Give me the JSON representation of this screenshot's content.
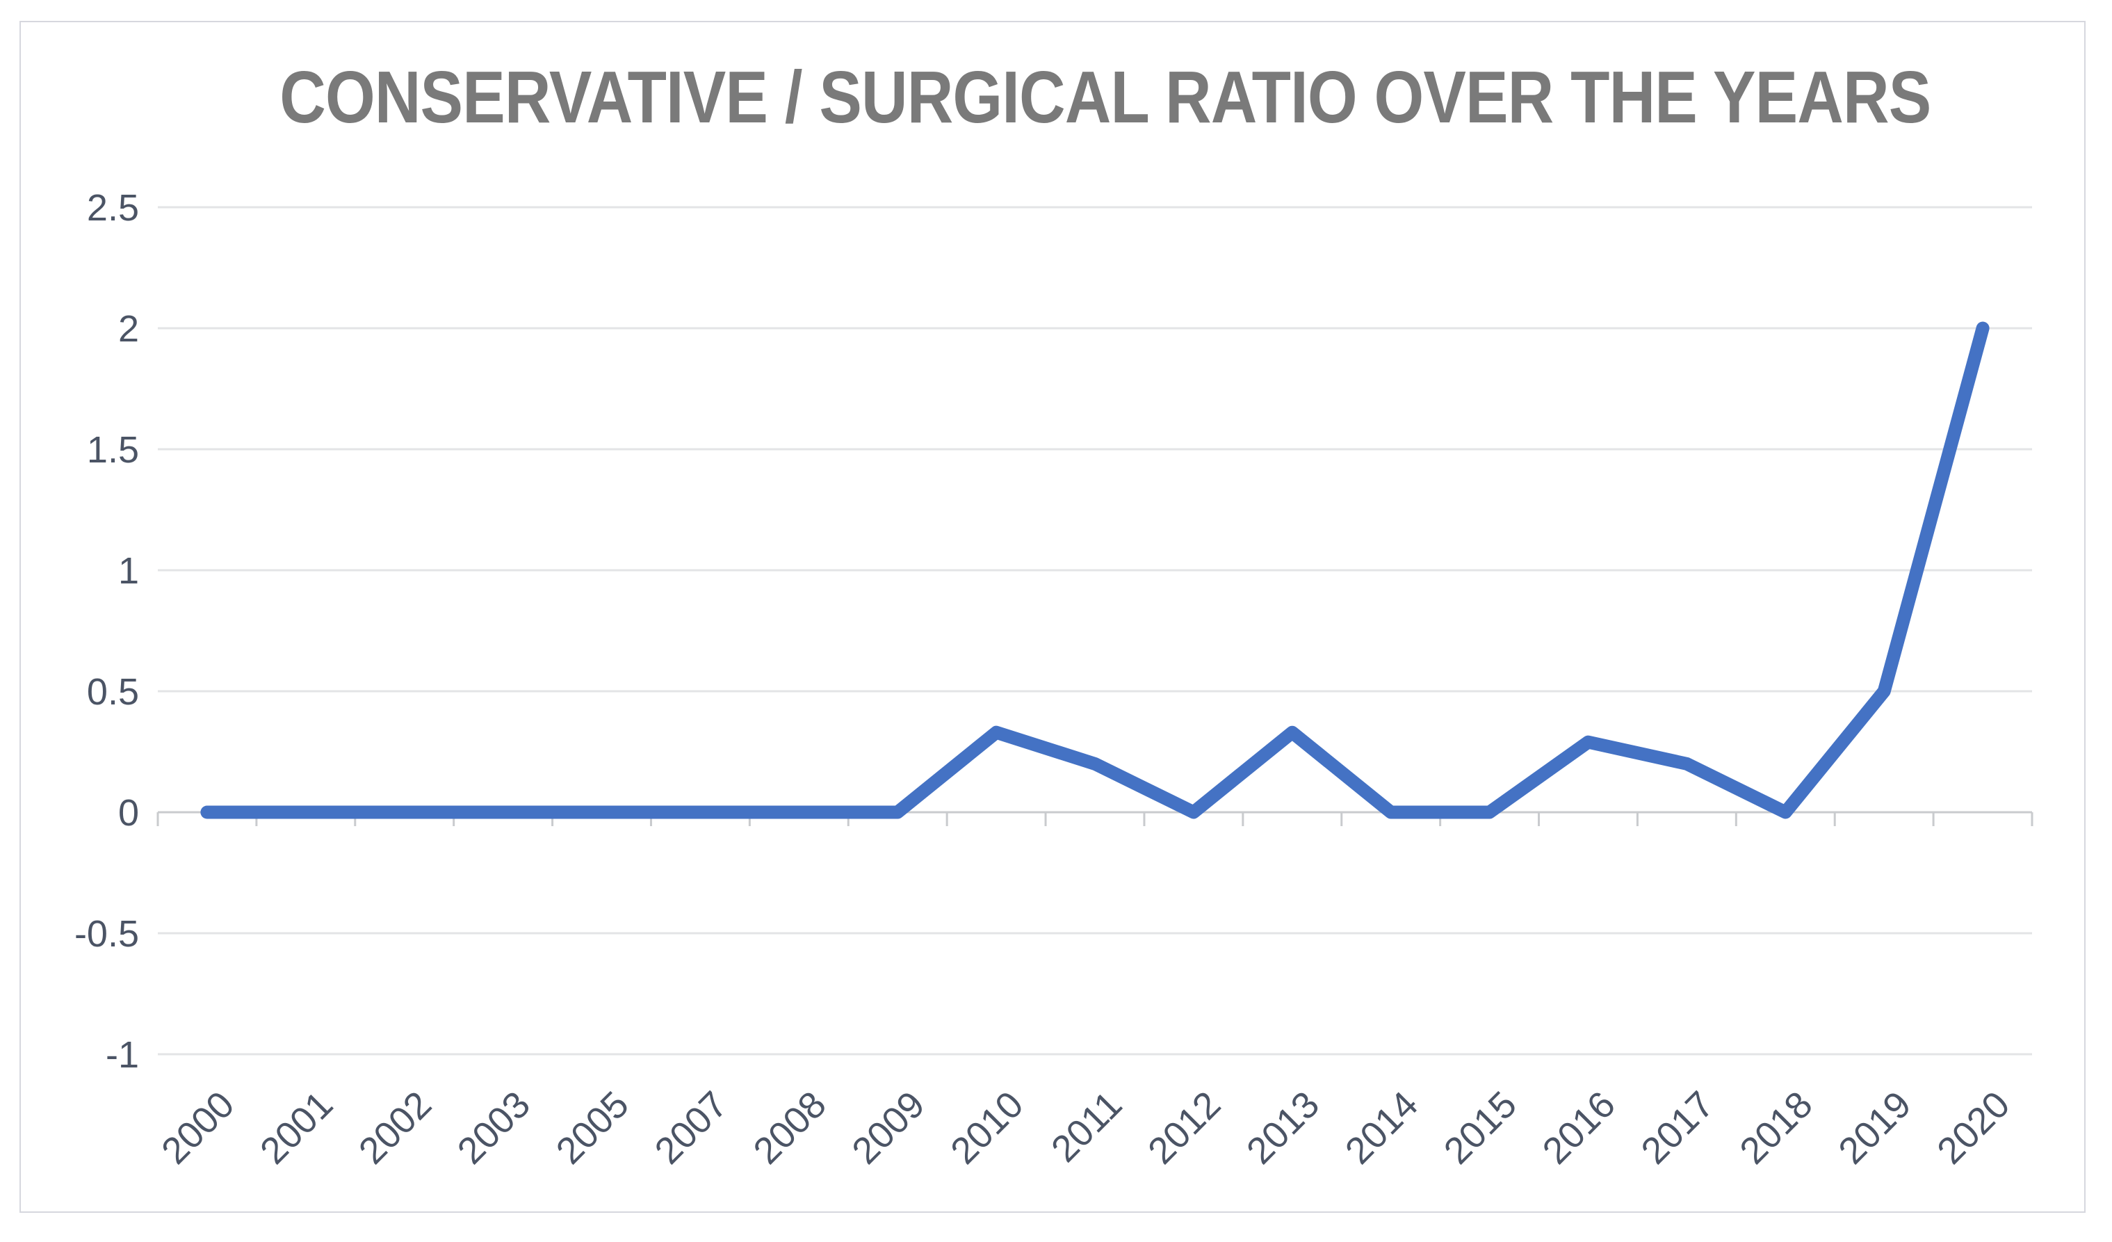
{
  "chart_data": {
    "type": "line",
    "title": "CONSERVATIVE / SURGICAL RATIO OVER THE YEARS",
    "categories": [
      "2000",
      "2001",
      "2002",
      "2003",
      "2005",
      "2007",
      "2008",
      "2009",
      "2010",
      "2011",
      "2012",
      "2013",
      "2014",
      "2015",
      "2016",
      "2017",
      "2018",
      "2019",
      "2020"
    ],
    "values": [
      0,
      0,
      0,
      0,
      0,
      0,
      0,
      0,
      0.33,
      0.2,
      0,
      0.33,
      0,
      0,
      0.29,
      0.2,
      0,
      0.5,
      2
    ],
    "y_ticks": [
      "2.5",
      "2",
      "1.5",
      "1",
      "0.5",
      "0",
      "-0.5",
      "-1"
    ],
    "ylim": [
      -1,
      2.5
    ],
    "xlabel": "",
    "ylabel": "",
    "grid": "horizontal-major",
    "legend": "none",
    "x_label_rotation_deg": 45,
    "colors": {
      "line": "#4472c4",
      "title_text": "#7a7a7a",
      "axis_label_text": "#4b5465",
      "gridline": "#e3e4e6",
      "zero_axis_line": "#c9cbce",
      "frame_border": "#d6d7de"
    }
  }
}
